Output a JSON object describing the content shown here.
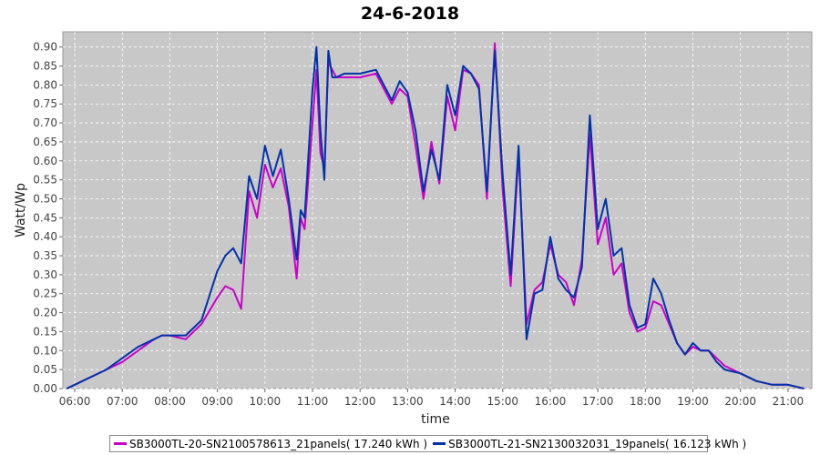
{
  "chart_data": {
    "type": "line",
    "title": "24-6-2018",
    "xlabel": "time",
    "ylabel": "Watt/Wp",
    "xlim": [
      "05:45",
      "21:30"
    ],
    "ylim": [
      0,
      0.94
    ],
    "x_ticks": [
      "06:00",
      "07:00",
      "08:00",
      "09:00",
      "10:00",
      "11:00",
      "12:00",
      "13:00",
      "14:00",
      "15:00",
      "16:00",
      "17:00",
      "18:00",
      "19:00",
      "20:00",
      "21:00"
    ],
    "y_ticks": [
      "0.00",
      "0.05",
      "0.10",
      "0.15",
      "0.20",
      "0.25",
      "0.30",
      "0.35",
      "0.40",
      "0.45",
      "0.50",
      "0.55",
      "0.60",
      "0.65",
      "0.70",
      "0.75",
      "0.80",
      "0.85",
      "0.90"
    ],
    "grid": true,
    "legend_position": "bottom",
    "background_color": "#c8c8c8",
    "series": [
      {
        "name": "SB3000TL-20-SN2100578613_21panels( 17.240 kWh )",
        "color": "#cc00cc",
        "x": [
          "05:50",
          "06:00",
          "06:20",
          "06:40",
          "07:00",
          "07:20",
          "07:40",
          "07:50",
          "08:00",
          "08:20",
          "08:40",
          "09:00",
          "09:10",
          "09:20",
          "09:30",
          "09:40",
          "09:50",
          "10:00",
          "10:10",
          "10:20",
          "10:30",
          "10:40",
          "10:45",
          "10:50",
          "11:00",
          "11:05",
          "11:10",
          "11:15",
          "11:20",
          "11:25",
          "11:30",
          "11:40",
          "12:00",
          "12:20",
          "12:40",
          "12:50",
          "13:00",
          "13:10",
          "13:20",
          "13:30",
          "13:40",
          "13:50",
          "14:00",
          "14:10",
          "14:20",
          "14:30",
          "14:40",
          "14:50",
          "15:00",
          "15:10",
          "15:20",
          "15:30",
          "15:40",
          "15:50",
          "16:00",
          "16:10",
          "16:20",
          "16:30",
          "16:40",
          "16:50",
          "17:00",
          "17:10",
          "17:20",
          "17:30",
          "17:40",
          "17:50",
          "18:00",
          "18:10",
          "18:20",
          "18:30",
          "18:40",
          "18:50",
          "19:00",
          "19:10",
          "19:20",
          "19:30",
          "19:40",
          "20:00",
          "20:20",
          "20:40",
          "21:00",
          "21:20"
        ],
        "values": [
          0.0,
          0.01,
          0.03,
          0.05,
          0.07,
          0.1,
          0.13,
          0.14,
          0.14,
          0.13,
          0.17,
          0.24,
          0.27,
          0.26,
          0.21,
          0.52,
          0.45,
          0.59,
          0.53,
          0.58,
          0.48,
          0.29,
          0.45,
          0.42,
          0.7,
          0.84,
          0.62,
          0.58,
          0.86,
          0.84,
          0.82,
          0.82,
          0.82,
          0.83,
          0.75,
          0.79,
          0.77,
          0.64,
          0.5,
          0.65,
          0.54,
          0.77,
          0.68,
          0.84,
          0.83,
          0.8,
          0.5,
          0.91,
          0.52,
          0.27,
          0.62,
          0.17,
          0.26,
          0.28,
          0.38,
          0.3,
          0.28,
          0.22,
          0.34,
          0.67,
          0.38,
          0.45,
          0.3,
          0.33,
          0.2,
          0.15,
          0.16,
          0.23,
          0.22,
          0.17,
          0.12,
          0.09,
          0.11,
          0.1,
          0.1,
          0.08,
          0.06,
          0.04,
          0.02,
          0.01,
          0.01,
          0.0
        ]
      },
      {
        "name": "SB3000TL-21-SN2130032031_19panels( 16.123 kWh )",
        "color": "#0033aa",
        "x": [
          "05:50",
          "06:00",
          "06:20",
          "06:40",
          "07:00",
          "07:20",
          "07:40",
          "07:50",
          "08:00",
          "08:20",
          "08:40",
          "09:00",
          "09:10",
          "09:20",
          "09:30",
          "09:40",
          "09:50",
          "10:00",
          "10:10",
          "10:20",
          "10:30",
          "10:40",
          "10:45",
          "10:50",
          "11:00",
          "11:05",
          "11:10",
          "11:15",
          "11:20",
          "11:25",
          "11:30",
          "11:40",
          "12:00",
          "12:20",
          "12:40",
          "12:50",
          "13:00",
          "13:10",
          "13:20",
          "13:30",
          "13:40",
          "13:50",
          "14:00",
          "14:10",
          "14:20",
          "14:30",
          "14:40",
          "14:50",
          "15:00",
          "15:10",
          "15:20",
          "15:30",
          "15:40",
          "15:50",
          "16:00",
          "16:10",
          "16:20",
          "16:30",
          "16:40",
          "16:50",
          "17:00",
          "17:10",
          "17:20",
          "17:30",
          "17:40",
          "17:50",
          "18:00",
          "18:10",
          "18:20",
          "18:30",
          "18:40",
          "18:50",
          "19:00",
          "19:10",
          "19:20",
          "19:30",
          "19:40",
          "20:00",
          "20:20",
          "20:40",
          "21:00",
          "21:20"
        ],
        "values": [
          0.0,
          0.01,
          0.03,
          0.05,
          0.08,
          0.11,
          0.13,
          0.14,
          0.14,
          0.14,
          0.18,
          0.31,
          0.35,
          0.37,
          0.33,
          0.56,
          0.5,
          0.64,
          0.56,
          0.63,
          0.5,
          0.34,
          0.47,
          0.45,
          0.79,
          0.9,
          0.68,
          0.55,
          0.89,
          0.82,
          0.82,
          0.83,
          0.83,
          0.84,
          0.76,
          0.81,
          0.78,
          0.68,
          0.52,
          0.63,
          0.55,
          0.8,
          0.72,
          0.85,
          0.83,
          0.79,
          0.52,
          0.89,
          0.56,
          0.3,
          0.64,
          0.13,
          0.25,
          0.26,
          0.4,
          0.29,
          0.26,
          0.24,
          0.32,
          0.72,
          0.42,
          0.5,
          0.35,
          0.37,
          0.22,
          0.16,
          0.17,
          0.29,
          0.25,
          0.18,
          0.12,
          0.09,
          0.12,
          0.1,
          0.1,
          0.07,
          0.05,
          0.04,
          0.02,
          0.01,
          0.01,
          0.0
        ]
      }
    ]
  }
}
